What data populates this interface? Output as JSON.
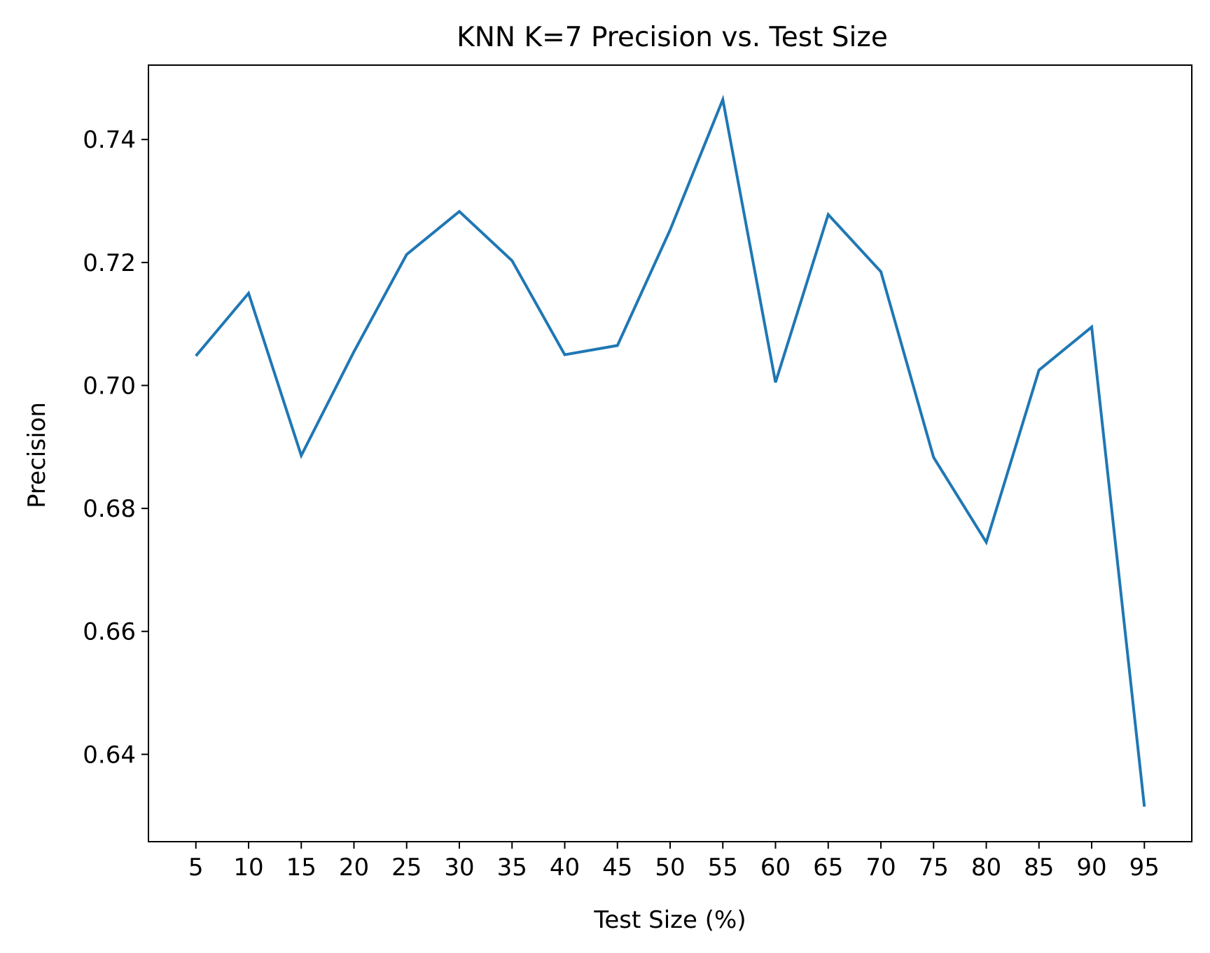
{
  "chart_data": {
    "type": "line",
    "title": "KNN K=7  Precision vs. Test Size",
    "xlabel": "Test Size (%)",
    "ylabel": "Precision",
    "x": [
      5,
      10,
      15,
      20,
      25,
      30,
      35,
      40,
      45,
      50,
      55,
      60,
      65,
      70,
      75,
      80,
      85,
      90,
      95
    ],
    "xticks": [
      "5",
      "10",
      "15",
      "20",
      "25",
      "30",
      "35",
      "40",
      "45",
      "50",
      "55",
      "60",
      "65",
      "70",
      "75",
      "80",
      "85",
      "90",
      "95"
    ],
    "yticks": [
      "0.64",
      "0.66",
      "0.68",
      "0.70",
      "0.72",
      "0.74"
    ],
    "ytick_values": [
      0.64,
      0.66,
      0.68,
      0.7,
      0.72,
      0.74
    ],
    "ylim": [
      0.6258,
      0.7521
    ],
    "xlim": [
      0.5,
      99.5
    ],
    "grid": false,
    "series": [
      {
        "color": "#1f77b4",
        "values": [
          0.7048,
          0.715,
          0.6886,
          0.7055,
          0.7213,
          0.7283,
          0.7203,
          0.705,
          0.7065,
          0.7253,
          0.7465,
          0.7005,
          0.7278,
          0.7185,
          0.6883,
          0.6745,
          0.7025,
          0.7095,
          0.6315
        ]
      }
    ]
  }
}
